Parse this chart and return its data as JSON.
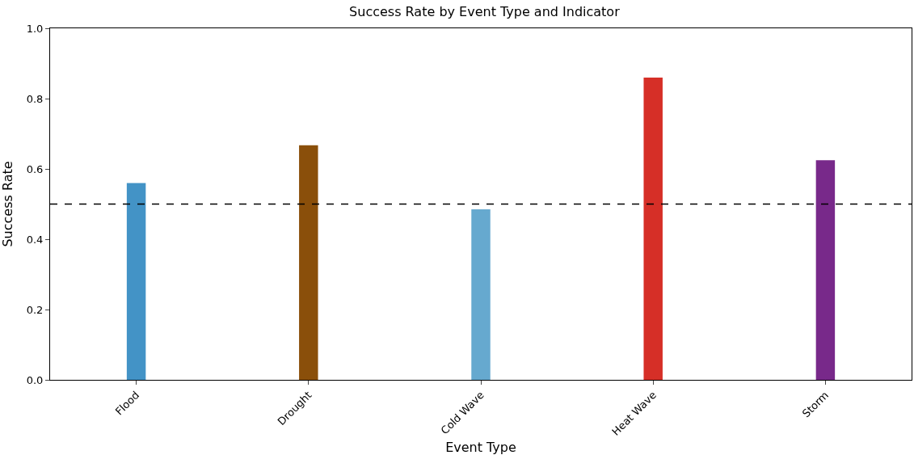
{
  "chart_data": {
    "type": "bar",
    "title": "Success Rate by Event Type and Indicator",
    "xlabel": "Event Type",
    "ylabel": "Success Rate",
    "categories": [
      "Flood",
      "Drought",
      "Cold Wave",
      "Heat Wave",
      "Storm"
    ],
    "values": [
      0.56,
      0.667,
      0.485,
      0.86,
      0.625
    ],
    "colors": [
      "#4393c6",
      "#8a4f0a",
      "#66a9cf",
      "#d62f27",
      "#78298a"
    ],
    "ylim": [
      0,
      1
    ],
    "yticks": [
      {
        "value": 0,
        "label": "0.0"
      },
      {
        "value": 0.2,
        "label": "0.2"
      },
      {
        "value": 0.4,
        "label": "0.4"
      },
      {
        "value": 0.6,
        "label": "0.6"
      },
      {
        "value": 0.8,
        "label": "0.8"
      },
      {
        "value": 1,
        "label": "1.0"
      }
    ],
    "ref_lines": [
      {
        "axis": "y",
        "value": 0.5,
        "color": "#000000",
        "line_style": "dashed"
      }
    ]
  }
}
